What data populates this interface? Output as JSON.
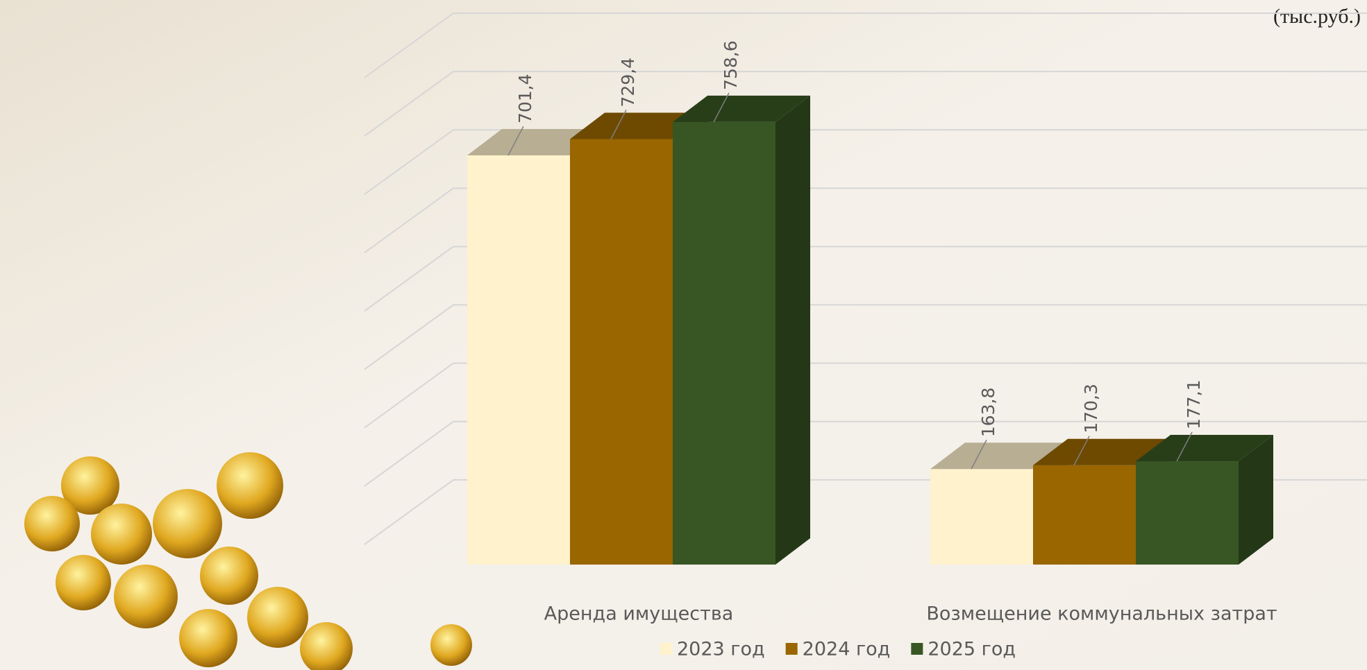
{
  "chart_data": {
    "type": "bar3d",
    "unit": "(тыс.руб.)",
    "categories": [
      "Аренда имущества",
      "Возмещение коммунальных затрат"
    ],
    "series": [
      {
        "name": "2023 год",
        "color": "#FFF2CC",
        "values": [
          701.4,
          163.8
        ],
        "value_labels": [
          "701,4",
          "163,8"
        ]
      },
      {
        "name": "2024 год",
        "color": "#996600",
        "values": [
          729.4,
          170.3
        ],
        "value_labels": [
          "729,4",
          "170,3"
        ]
      },
      {
        "name": "2025 год",
        "color": "#375623",
        "values": [
          758.6,
          177.1
        ],
        "value_labels": [
          "758,6",
          "177,1"
        ]
      }
    ],
    "ylim": [
      0,
      900
    ],
    "yticks": [
      100,
      200,
      300,
      400,
      500,
      600,
      700,
      800,
      900
    ],
    "grid": true
  }
}
